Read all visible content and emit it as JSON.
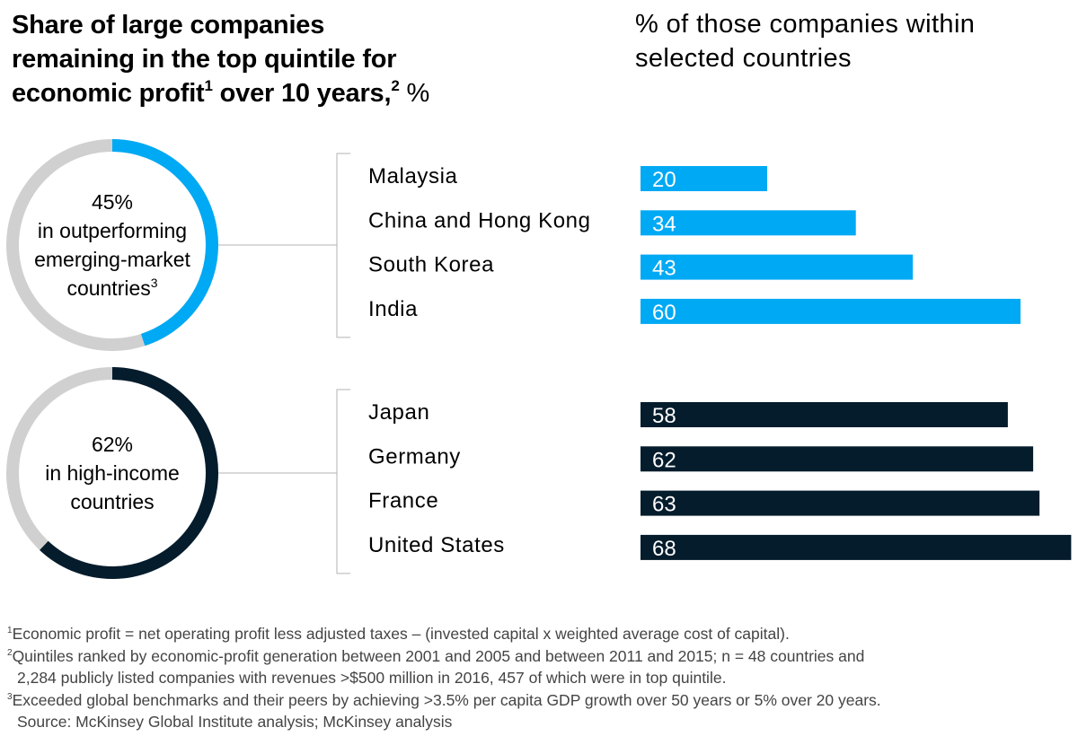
{
  "title": {
    "line1": "Share of large companies",
    "line2": "remaining in the top quintile for",
    "line3_a": "economic profit",
    "line3_sup1": "1",
    "line3_b": " over 10 years,",
    "line3_sup2": "2",
    "line3_unit": " %"
  },
  "subtitle": "% of those companies within selected countries",
  "colors": {
    "emerging": "#00A9F4",
    "high_income": "#051C2C",
    "donut_track": "#D0D0D0",
    "bracket": "#B3B3B3"
  },
  "chart_data": [
    {
      "type": "pie",
      "title": "Emerging-market donut",
      "value_pct": 45,
      "value_label": "45%",
      "caption_lines": [
        "in outperforming",
        "emerging-market",
        "countries"
      ],
      "caption_sup": "3"
    },
    {
      "type": "bar",
      "title": "Outperforming emerging-market countries",
      "categories": [
        "Malaysia",
        "China and Hong Kong",
        "South Korea",
        "India"
      ],
      "values": [
        20,
        34,
        43,
        60
      ],
      "xlim": [
        0,
        68
      ]
    },
    {
      "type": "pie",
      "title": "High-income donut",
      "value_pct": 62,
      "value_label": "62%",
      "caption_lines": [
        "in high-income",
        "countries"
      ],
      "caption_sup": ""
    },
    {
      "type": "bar",
      "title": "High-income countries",
      "categories": [
        "Japan",
        "Germany",
        "France",
        "United States"
      ],
      "values": [
        58,
        62,
        63,
        68
      ],
      "xlim": [
        0,
        68
      ]
    }
  ],
  "footnotes": [
    {
      "sup": "1",
      "text": "Economic profit = net operating profit less adjusted taxes – (invested capital x weighted average cost of capital)."
    },
    {
      "sup": "2",
      "text": "Quintiles ranked by economic-profit generation between 2001 and 2005 and between 2011 and 2015; n = 48 countries and"
    },
    {
      "sup": "",
      "text": "2,284 publicly listed companies with revenues >$500 million in 2016, 457 of which were in top quintile."
    },
    {
      "sup": "3",
      "text": "Exceeded global benchmarks and their peers by achieving >3.5% per capita GDP growth over 50 years or 5% over 20 years."
    },
    {
      "sup": "",
      "text": "Source: McKinsey Global Institute analysis; McKinsey analysis"
    }
  ]
}
